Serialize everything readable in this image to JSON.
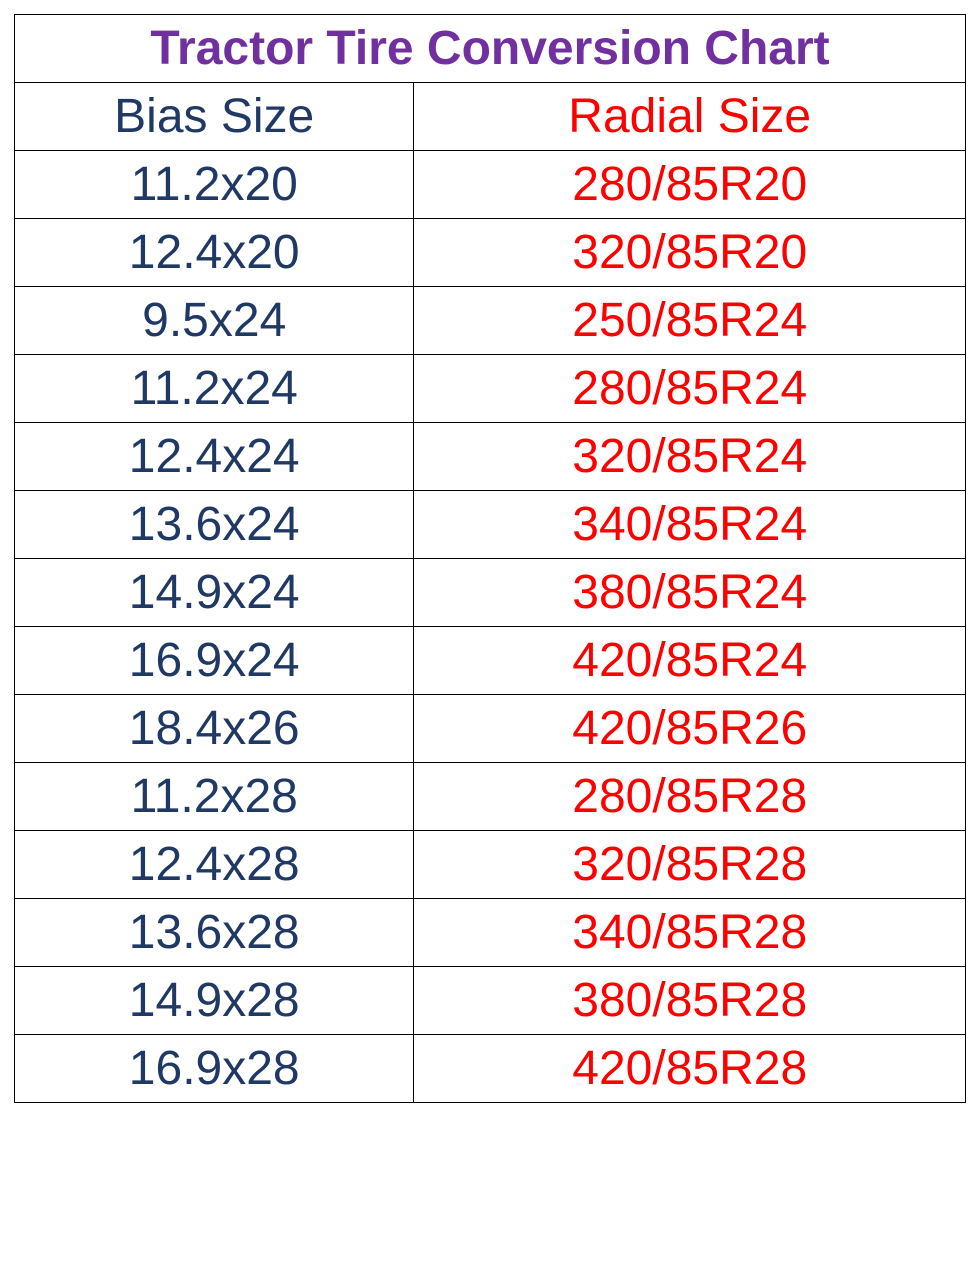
{
  "table": {
    "type": "table",
    "title": "Tractor Tire Conversion Chart",
    "title_color": "#7030a0",
    "title_fontsize": 48,
    "columns": [
      {
        "label": "Bias Size",
        "color": "#1f3864",
        "width_pct": 42
      },
      {
        "label": "Radial Size",
        "color": "#ff0000",
        "width_pct": 58
      }
    ],
    "header_fontsize": 48,
    "cell_fontsize": 48,
    "border_color": "#000000",
    "background_color": "#ffffff",
    "column_colors": [
      "#1f3864",
      "#ff0000"
    ],
    "rows": [
      [
        "11.2x20",
        "280/85R20"
      ],
      [
        "12.4x20",
        "320/85R20"
      ],
      [
        "9.5x24",
        "250/85R24"
      ],
      [
        "11.2x24",
        "280/85R24"
      ],
      [
        "12.4x24",
        "320/85R24"
      ],
      [
        "13.6x24",
        "340/85R24"
      ],
      [
        "14.9x24",
        "380/85R24"
      ],
      [
        "16.9x24",
        "420/85R24"
      ],
      [
        "18.4x26",
        "420/85R26"
      ],
      [
        "11.2x28",
        "280/85R28"
      ],
      [
        "12.4x28",
        "320/85R28"
      ],
      [
        "13.6x28",
        "340/85R28"
      ],
      [
        "14.9x28",
        "380/85R28"
      ],
      [
        "16.9x28",
        "420/85R28"
      ]
    ]
  }
}
